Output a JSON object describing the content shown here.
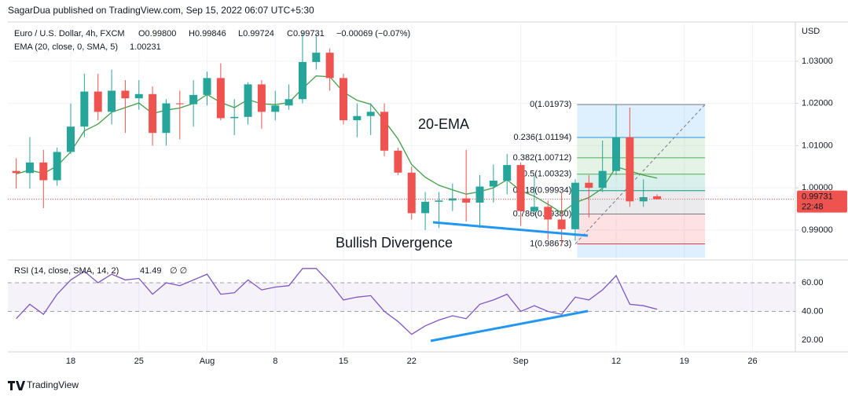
{
  "header": {
    "published": "SagarDua published on TradingView.com, Sep 15, 2022 06:07 UTC+5:30",
    "currency": "USD"
  },
  "footer": {
    "brand": "TradingView"
  },
  "annotations": {
    "ema_note": "20-EMA",
    "divergence_note": "Bullish Divergence",
    "countdown": "22:48"
  },
  "chart_data": [
    {
      "type": "candlestick",
      "title": "Euro / U.S. Dollar, 4h, FXCM",
      "ohlc_text": {
        "open": "O0.99800",
        "high": "H0.99846",
        "low": "L0.99724",
        "close": "C0.99731",
        "change": "−0.00069 (−0.07%)"
      },
      "categories": [
        null,
        null,
        null,
        null,
        "18",
        null,
        null,
        null,
        null,
        "25",
        null,
        null,
        null,
        null,
        "Aug",
        null,
        null,
        null,
        null,
        "8",
        null,
        null,
        null,
        null,
        "15",
        null,
        null,
        null,
        null,
        "22",
        null,
        null,
        null,
        null,
        null,
        null,
        null,
        "Sep",
        null,
        null,
        null,
        null,
        null,
        null,
        "12",
        null,
        null,
        null,
        null,
        "19",
        null,
        null,
        null,
        null,
        "26",
        null
      ],
      "open": [
        1.004,
        1.0035,
        1.006,
        1.0018,
        1.0085,
        1.0145,
        1.0228,
        1.018,
        1.023,
        1.0212,
        1.0222,
        1.013,
        1.02,
        1.0198,
        1.022,
        1.026,
        1.0165,
        1.0168,
        1.0245,
        1.018,
        1.0195,
        1.021,
        1.0298,
        1.032,
        1.026,
        1.016,
        1.017,
        1.018,
        1.0088,
        1.0036,
        0.994,
        0.9967,
        0.997,
        0.9975,
        0.9965,
        1.0003,
        1.0017,
        1.0054,
        0.9945,
        0.9955,
        0.9925,
        0.9902,
        1.0012,
        1.0,
        1.004,
        1.012,
        0.9968,
        0.998,
        null,
        null,
        null,
        null,
        null,
        null,
        null,
        null
      ],
      "high": [
        1.007,
        1.012,
        1.009,
        1.0095,
        1.02,
        1.027,
        1.027,
        1.028,
        1.0255,
        1.0255,
        1.024,
        1.021,
        1.023,
        1.0255,
        1.0275,
        1.0295,
        1.021,
        1.025,
        1.0255,
        1.023,
        1.0245,
        1.0368,
        1.0365,
        1.033,
        1.027,
        1.02,
        1.02,
        1.02,
        1.0095,
        1.005,
        0.999,
        0.999,
        1.001,
        1.009,
        1.003,
        1.0055,
        1.008,
        1.006,
        1.003,
        0.997,
        0.999,
        1.002,
        1.003,
        1.0112,
        1.0197,
        1.019,
        1.002,
        0.99846,
        null,
        null,
        null,
        null,
        null,
        null,
        null,
        null
      ],
      "low": [
        0.9998,
        0.9998,
        0.9952,
        1.0005,
        1.008,
        1.012,
        1.016,
        1.015,
        1.013,
        1.0185,
        1.01,
        1.01,
        1.0115,
        1.0145,
        1.0195,
        1.016,
        1.0125,
        1.015,
        1.014,
        1.016,
        1.0185,
        1.02,
        1.028,
        1.023,
        1.015,
        1.012,
        1.0125,
        1.0075,
        1.003,
        0.9925,
        0.99,
        0.9905,
        0.9945,
        0.992,
        0.9905,
        0.9965,
        0.9985,
        0.991,
        0.9935,
        0.9877,
        0.9864,
        0.9875,
        0.993,
        0.999,
        1.003,
        0.9955,
        0.9955,
        0.99724,
        null,
        null,
        null,
        null,
        null,
        null,
        null,
        null
      ],
      "close": [
        1.0035,
        1.006,
        1.0018,
        1.0085,
        1.0145,
        1.0228,
        1.018,
        1.023,
        1.0212,
        1.0222,
        1.013,
        1.02,
        1.0198,
        1.022,
        1.026,
        1.0165,
        1.0168,
        1.0245,
        1.018,
        1.0195,
        1.021,
        1.0298,
        1.032,
        1.026,
        1.016,
        1.017,
        1.018,
        1.0088,
        1.0036,
        0.994,
        0.9967,
        0.997,
        0.9975,
        0.9965,
        1.0003,
        1.0017,
        1.0054,
        0.9945,
        0.9955,
        0.9925,
        0.9902,
        1.0012,
        1.0,
        1.004,
        1.012,
        0.9968,
        0.9978,
        0.99731,
        null,
        null,
        null,
        null,
        null,
        null,
        null,
        null
      ],
      "last_label": "0.99731",
      "up_color": "#26a69a",
      "down_color": "#ef5350",
      "ema": {
        "label": "EMA (20, close, 0, SMA, 5)",
        "last_label": "1.00231",
        "color": "#43a047",
        "values": [
          1.0033,
          1.0042,
          1.0034,
          1.0052,
          1.0085,
          1.0135,
          1.0151,
          1.0179,
          1.019,
          1.0201,
          1.0176,
          1.0184,
          1.0189,
          1.02,
          1.0221,
          1.0202,
          1.019,
          1.0209,
          1.0199,
          1.0197,
          1.0202,
          1.0235,
          1.0265,
          1.0263,
          1.0227,
          1.0207,
          1.0198,
          1.0159,
          1.0116,
          1.0055,
          1.0025,
          1.0006,
          0.9995,
          0.9985,
          0.9991,
          1.0,
          1.0019,
          0.9993,
          0.998,
          0.9961,
          0.9941,
          0.9965,
          0.9977,
          0.9999,
          1.005,
          1.004,
          1.003,
          1.00231,
          null,
          null,
          null,
          null,
          null,
          null,
          null,
          null
        ]
      },
      "fib": [
        {
          "value": 1.01973,
          "label": "0(1.01973)",
          "color": "#787b86"
        },
        {
          "value": 1.01194,
          "label": "0.236(1.01194)",
          "color": "#2196f3"
        },
        {
          "value": 1.00712,
          "label": "0.382(1.00712)",
          "color": "#4caf50"
        },
        {
          "value": 1.00323,
          "label": "0.5(1.00323)",
          "color": "#4caf50"
        },
        {
          "value": 0.99934,
          "label": "0.618(0.99934)",
          "color": "#089981"
        },
        {
          "value": 0.9938,
          "label": "0.786(0.99380)",
          "color": "#787b86"
        },
        {
          "value": 0.98673,
          "label": "1(0.98673)",
          "color": "#f23645"
        }
      ],
      "ylim": [
        0.9831,
        1.0389
      ],
      "yticks": [
        {
          "value": 0.99,
          "label": "0.99000"
        },
        {
          "value": 1.0,
          "label": "1.00000"
        },
        {
          "value": 1.01,
          "label": "1.01000"
        },
        {
          "value": 1.02,
          "label": "1.02000"
        },
        {
          "value": 1.03,
          "label": "1.03000"
        }
      ],
      "grid": true
    },
    {
      "type": "line",
      "title": "RSI (14, close, SMA, 14, 2)",
      "last_label": "41.49",
      "extra": "∅ ∅",
      "color": "#7e57c2",
      "values": [
        35,
        45,
        38,
        52,
        62,
        68,
        60,
        66,
        62,
        63,
        52,
        60,
        58,
        62,
        66,
        52,
        53,
        62,
        55,
        57,
        58,
        70,
        70,
        60,
        48,
        50,
        51,
        40,
        33,
        24,
        30,
        34,
        37,
        35,
        45,
        48,
        52,
        40,
        44,
        40,
        38,
        50,
        48,
        55,
        65,
        45,
        44,
        41.49,
        null,
        null,
        null,
        null,
        null,
        null,
        null,
        null
      ],
      "ylim": [
        11.8,
        74.8
      ],
      "yticks": [
        {
          "value": 20,
          "label": "20.00"
        },
        {
          "value": 40,
          "label": "40.00"
        },
        {
          "value": 60,
          "label": "60.00"
        }
      ]
    }
  ]
}
